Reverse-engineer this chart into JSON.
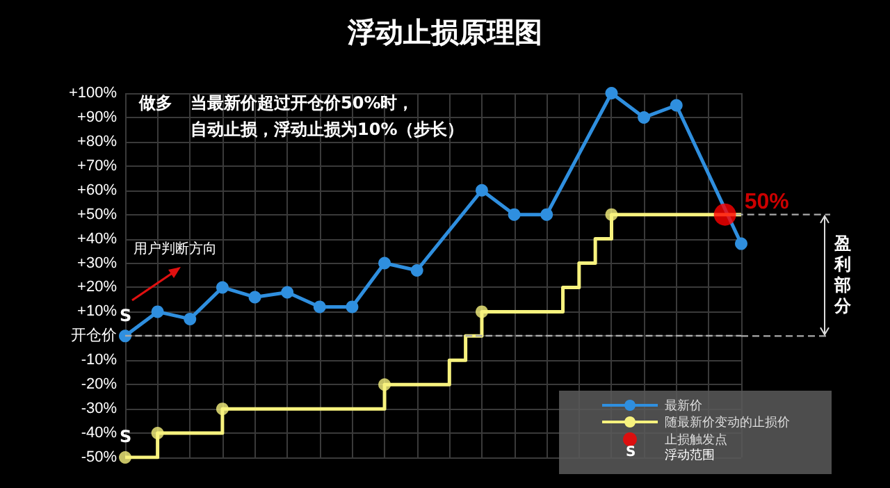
{
  "chart_data": {
    "type": "line",
    "title": "浮动止损原理图",
    "annotations": [
      "做多",
      "当最新价超过开仓价50%时，",
      "自动止损，浮动止损为10%（步长）",
      "用户判断方向",
      "盈利部分",
      {
        "text": "S",
        "y": 0
      },
      {
        "text": "S",
        "y": -50
      },
      "S",
      "浮动范围"
    ],
    "categories": [
      null,
      null,
      null,
      null,
      null,
      null,
      null,
      null,
      null,
      null,
      null,
      null,
      null,
      null,
      null,
      null,
      null,
      null,
      null,
      null,
      null,
      null,
      null,
      null,
      null,
      null,
      null,
      null,
      null,
      null,
      null,
      null,
      null,
      null,
      null,
      null,
      null,
      null,
      null
    ],
    "ylim": [
      -50,
      100
    ],
    "yticks": [
      {
        "value": -50,
        "label": "-50%"
      },
      {
        "value": -40,
        "label": "-40%"
      },
      {
        "value": -30,
        "label": "-30%"
      },
      {
        "value": -20,
        "label": "-20%"
      },
      {
        "value": -10,
        "label": "-10%"
      },
      {
        "value": 0,
        "label": "开仓价"
      },
      {
        "value": 10,
        "label": "+10%"
      },
      {
        "value": 20,
        "label": "+20%"
      },
      {
        "value": 30,
        "label": "+30%"
      },
      {
        "value": 40,
        "label": "+40%"
      },
      {
        "value": 50,
        "label": "+50%"
      },
      {
        "value": 60,
        "label": "+60%"
      },
      {
        "value": 70,
        "label": "+70%"
      },
      {
        "value": 80,
        "label": "+80%"
      },
      {
        "value": 90,
        "label": "+90%"
      },
      {
        "value": 100,
        "label": "+100%"
      }
    ],
    "tick_labels": "y",
    "grid": true,
    "legend": "bottom right",
    "ref_lines": [
      {
        "axis": "y",
        "value": 0,
        "color": "#aaaaaa",
        "line_style": "dashed"
      }
    ],
    "series": [
      {
        "name": "最新价",
        "color": "#2f8fdf",
        "marker": "circle",
        "values": [
          0,
          null,
          10,
          null,
          7,
          null,
          20,
          null,
          16,
          null,
          18,
          null,
          12,
          null,
          12,
          null,
          30,
          null,
          27,
          null,
          null,
          null,
          60,
          null,
          50,
          null,
          50,
          null,
          null,
          null,
          100,
          null,
          90,
          null,
          95,
          null,
          null,
          null,
          38
        ]
      },
      {
        "name": "随最新价变动的止损价",
        "type": "step",
        "color": "#f7f27e",
        "marker": "none",
        "values": [
          -50,
          null,
          -40,
          null,
          null,
          null,
          -30,
          null,
          null,
          null,
          null,
          null,
          null,
          null,
          null,
          null,
          -20,
          null,
          null,
          null,
          -10,
          0,
          10,
          null,
          null,
          null,
          null,
          20,
          30,
          40,
          50,
          null,
          null,
          null,
          null,
          null,
          null,
          null,
          50
        ]
      },
      {
        "type": "scatter",
        "color": "#f7f27e",
        "marker": "circle",
        "values": [
          -50,
          null,
          -40,
          null,
          null,
          null,
          -30,
          null,
          null,
          null,
          null,
          null,
          null,
          null,
          null,
          null,
          -20,
          null,
          null,
          null,
          null,
          null,
          10,
          null,
          null,
          null,
          null,
          null,
          null,
          null,
          50,
          null,
          null,
          null,
          null,
          null,
          null,
          null,
          null
        ]
      },
      {
        "name": "止损触发点",
        "type": "scatter",
        "color": "#ff0000",
        "marker": "circle",
        "values": [
          null,
          null,
          null,
          null,
          null,
          null,
          null,
          null,
          null,
          null,
          null,
          null,
          null,
          null,
          null,
          null,
          null,
          null,
          null,
          null,
          null,
          null,
          null,
          null,
          null,
          null,
          null,
          null,
          null,
          null,
          null,
          null,
          null,
          null,
          null,
          null,
          null,
          50,
          null
        ],
        "value_labels": [
          null,
          null,
          null,
          null,
          null,
          null,
          null,
          null,
          null,
          null,
          null,
          null,
          null,
          null,
          null,
          null,
          null,
          null,
          null,
          null,
          null,
          null,
          null,
          null,
          null,
          null,
          null,
          null,
          null,
          null,
          null,
          null,
          null,
          null,
          null,
          null,
          null,
          "50%",
          null
        ]
      }
    ]
  }
}
